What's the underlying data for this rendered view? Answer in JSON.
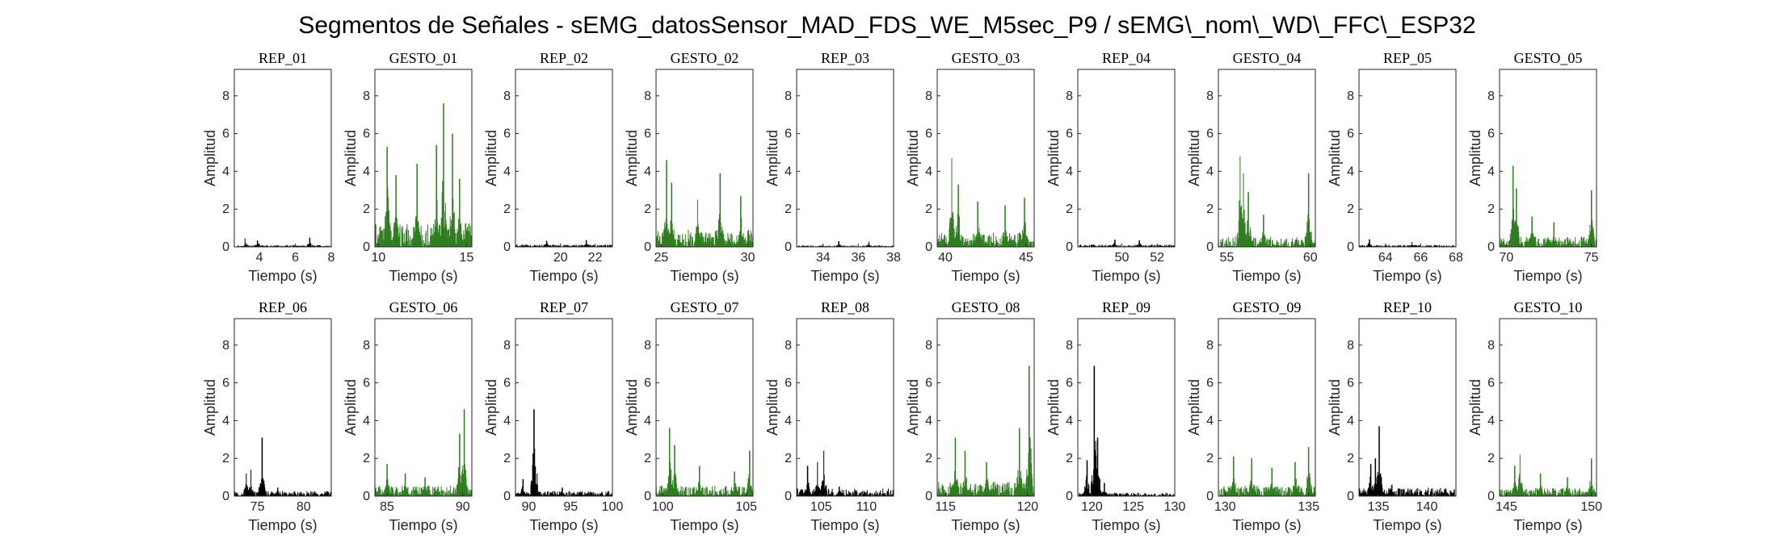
{
  "chart_data": {
    "type": "line",
    "title": "Segmentos de Señales - sEMG_datosSensor_MAD_FDS_WE_M5sec_P9 / sEMG\\_nom\\_WD\\_FFC\\_ESP32",
    "colors": {
      "rep": "#000000",
      "gesto": "#2e7d1e",
      "axes": "#262626"
    },
    "panels": [
      {
        "title": "REP_01",
        "kind": "rep",
        "xlim": [
          2.6,
          8
        ],
        "xticks": [
          4,
          6,
          8
        ],
        "ylim": [
          0,
          9.4
        ],
        "yticks": [
          0,
          2,
          4,
          6,
          8
        ],
        "xlabel": "Tiempo (s)",
        "ylabel": "Amplitud",
        "series": {
          "noise": 0.09,
          "spikes": [
            [
              3.2,
              0.45
            ],
            [
              3.9,
              0.33
            ],
            [
              6.8,
              0.48
            ]
          ]
        }
      },
      {
        "title": "GESTO_01",
        "kind": "gesto",
        "xlim": [
          9.8,
          15.3
        ],
        "xticks": [
          10,
          15
        ],
        "ylim": [
          0,
          9.4
        ],
        "yticks": [
          0,
          2,
          4,
          6,
          8
        ],
        "xlabel": "Tiempo (s)",
        "ylabel": "Amplitud",
        "series": {
          "noise": 1.3,
          "spikes": [
            [
              10.5,
              5.3
            ],
            [
              11.0,
              3.8
            ],
            [
              12.2,
              4.4
            ],
            [
              13.3,
              5.4
            ],
            [
              13.7,
              7.6
            ],
            [
              14.2,
              6.0
            ],
            [
              14.6,
              3.6
            ]
          ]
        }
      },
      {
        "title": "REP_02",
        "kind": "rep",
        "xlim": [
          17.4,
          23
        ],
        "xticks": [
          20,
          22
        ],
        "ylim": [
          0,
          9.4
        ],
        "yticks": [
          0,
          2,
          4,
          6,
          8
        ],
        "xlabel": "Tiempo (s)",
        "ylabel": "Amplitud",
        "series": {
          "noise": 0.12,
          "spikes": [
            [
              19.2,
              0.32
            ],
            [
              21.5,
              0.36
            ]
          ]
        }
      },
      {
        "title": "GESTO_02",
        "kind": "gesto",
        "xlim": [
          24.7,
          30.3
        ],
        "xticks": [
          25,
          30
        ],
        "ylim": [
          0,
          9.4
        ],
        "yticks": [
          0,
          2,
          4,
          6,
          8
        ],
        "xlabel": "Tiempo (s)",
        "ylabel": "Amplitud",
        "series": {
          "noise": 0.9,
          "spikes": [
            [
              25.3,
              4.6
            ],
            [
              25.6,
              3.4
            ],
            [
              27.1,
              2.5
            ],
            [
              28.4,
              3.9
            ],
            [
              29.6,
              2.7
            ]
          ]
        }
      },
      {
        "title": "REP_03",
        "kind": "rep",
        "xlim": [
          32.5,
          38
        ],
        "xticks": [
          34,
          36,
          38
        ],
        "ylim": [
          0,
          9.4
        ],
        "yticks": [
          0,
          2,
          4,
          6,
          8
        ],
        "xlabel": "Tiempo (s)",
        "ylabel": "Amplitud",
        "series": {
          "noise": 0.08,
          "spikes": [
            [
              34.9,
              0.3
            ],
            [
              36.6,
              0.28
            ]
          ]
        }
      },
      {
        "title": "GESTO_03",
        "kind": "gesto",
        "xlim": [
          39.5,
          45.5
        ],
        "xticks": [
          40,
          45
        ],
        "ylim": [
          0,
          9.4
        ],
        "yticks": [
          0,
          2,
          4,
          6,
          8
        ],
        "xlabel": "Tiempo (s)",
        "ylabel": "Amplitud",
        "series": {
          "noise": 0.75,
          "spikes": [
            [
              40.4,
              4.7
            ],
            [
              40.8,
              3.3
            ],
            [
              42.0,
              2.4
            ],
            [
              43.7,
              2.2
            ],
            [
              44.9,
              2.6
            ]
          ]
        }
      },
      {
        "title": "REP_04",
        "kind": "rep",
        "xlim": [
          47.5,
          53
        ],
        "xticks": [
          50,
          52
        ],
        "ylim": [
          0,
          9.4
        ],
        "yticks": [
          0,
          2,
          4,
          6,
          8
        ],
        "xlabel": "Tiempo (s)",
        "ylabel": "Amplitud",
        "series": {
          "noise": 0.12,
          "spikes": [
            [
              49.6,
              0.38
            ],
            [
              51.0,
              0.34
            ]
          ]
        }
      },
      {
        "title": "GESTO_04",
        "kind": "gesto",
        "xlim": [
          54.5,
          60.3
        ],
        "xticks": [
          55,
          60
        ],
        "ylim": [
          0,
          9.4
        ],
        "yticks": [
          0,
          2,
          4,
          6,
          8
        ],
        "xlabel": "Tiempo (s)",
        "ylabel": "Amplitud",
        "series": {
          "noise": 0.55,
          "spikes": [
            [
              55.8,
              4.8
            ],
            [
              56.0,
              3.9
            ],
            [
              56.3,
              2.9
            ],
            [
              57.2,
              1.7
            ],
            [
              59.9,
              3.9
            ]
          ]
        }
      },
      {
        "title": "REP_05",
        "kind": "rep",
        "xlim": [
          62.5,
          68
        ],
        "xticks": [
          64,
          66,
          68
        ],
        "ylim": [
          0,
          9.4
        ],
        "yticks": [
          0,
          2,
          4,
          6,
          8
        ],
        "xlabel": "Tiempo (s)",
        "ylabel": "Amplitud",
        "series": {
          "noise": 0.1,
          "spikes": [
            [
              63.1,
              0.4
            ],
            [
              65.5,
              0.25
            ]
          ]
        }
      },
      {
        "title": "GESTO_05",
        "kind": "gesto",
        "xlim": [
          69.6,
          75.3
        ],
        "xticks": [
          70,
          75
        ],
        "ylim": [
          0,
          9.4
        ],
        "yticks": [
          0,
          2,
          4,
          6,
          8
        ],
        "xlabel": "Tiempo (s)",
        "ylabel": "Amplitud",
        "series": {
          "noise": 0.55,
          "spikes": [
            [
              70.4,
              4.3
            ],
            [
              70.6,
              3.1
            ],
            [
              71.5,
              1.6
            ],
            [
              72.8,
              1.3
            ],
            [
              75.0,
              3.0
            ]
          ]
        }
      },
      {
        "title": "REP_06",
        "kind": "rep",
        "xlim": [
          72.5,
          83
        ],
        "xticks": [
          75,
          80
        ],
        "ylim": [
          0,
          9.4
        ],
        "yticks": [
          0,
          2,
          4,
          6,
          8
        ],
        "xlabel": "Tiempo (s)",
        "ylabel": "Amplitud",
        "series": {
          "noise": 0.28,
          "spikes": [
            [
              73.8,
              1.2
            ],
            [
              74.3,
              1.4
            ],
            [
              75.5,
              3.1
            ],
            [
              77.2,
              0.45
            ]
          ]
        }
      },
      {
        "title": "GESTO_06",
        "kind": "gesto",
        "xlim": [
          84.2,
          90.6
        ],
        "xticks": [
          85,
          90
        ],
        "ylim": [
          0,
          9.4
        ],
        "yticks": [
          0,
          2,
          4,
          6,
          8
        ],
        "xlabel": "Tiempo (s)",
        "ylabel": "Amplitud",
        "series": {
          "noise": 0.55,
          "spikes": [
            [
              85.0,
              1.7
            ],
            [
              86.2,
              1.2
            ],
            [
              87.5,
              1.0
            ],
            [
              89.8,
              3.3
            ],
            [
              90.1,
              4.6
            ]
          ]
        }
      },
      {
        "title": "REP_07",
        "kind": "rep",
        "xlim": [
          88.4,
          100
        ],
        "xticks": [
          90,
          95,
          100
        ],
        "ylim": [
          0,
          9.4
        ],
        "yticks": [
          0,
          2,
          4,
          6,
          8
        ],
        "xlabel": "Tiempo (s)",
        "ylabel": "Amplitud",
        "series": {
          "noise": 0.28,
          "spikes": [
            [
              89.3,
              0.9
            ],
            [
              90.6,
              4.6
            ],
            [
              91.0,
              1.2
            ],
            [
              94.0,
              0.45
            ]
          ]
        }
      },
      {
        "title": "GESTO_07",
        "kind": "gesto",
        "xlim": [
          99.6,
          105.4
        ],
        "xticks": [
          100,
          105
        ],
        "ylim": [
          0,
          9.4
        ],
        "yticks": [
          0,
          2,
          4,
          6,
          8
        ],
        "xlabel": "Tiempo (s)",
        "ylabel": "Amplitud",
        "series": {
          "noise": 0.55,
          "spikes": [
            [
              100.4,
              3.6
            ],
            [
              100.7,
              2.7
            ],
            [
              102.2,
              1.6
            ],
            [
              104.3,
              1.3
            ],
            [
              105.2,
              2.4
            ]
          ]
        }
      },
      {
        "title": "REP_08",
        "kind": "rep",
        "xlim": [
          102.3,
          113
        ],
        "xticks": [
          105,
          110
        ],
        "ylim": [
          0,
          9.4
        ],
        "yticks": [
          0,
          2,
          4,
          6,
          8
        ],
        "xlabel": "Tiempo (s)",
        "ylabel": "Amplitud",
        "series": {
          "noise": 0.4,
          "spikes": [
            [
              103.5,
              1.6
            ],
            [
              104.6,
              1.8
            ],
            [
              105.3,
              2.4
            ],
            [
              107.0,
              0.5
            ]
          ]
        }
      },
      {
        "title": "GESTO_08",
        "kind": "gesto",
        "xlim": [
          114.5,
          120.4
        ],
        "xticks": [
          115,
          120
        ],
        "ylim": [
          0,
          9.4
        ],
        "yticks": [
          0,
          2,
          4,
          6,
          8
        ],
        "xlabel": "Tiempo (s)",
        "ylabel": "Amplitud",
        "series": {
          "noise": 0.75,
          "spikes": [
            [
              115.6,
              3.1
            ],
            [
              116.2,
              2.4
            ],
            [
              117.5,
              1.8
            ],
            [
              119.5,
              3.6
            ],
            [
              120.1,
              6.9
            ]
          ]
        }
      },
      {
        "title": "REP_09",
        "kind": "rep",
        "xlim": [
          118.3,
          130
        ],
        "xticks": [
          120,
          125,
          130
        ],
        "ylim": [
          0,
          9.4
        ],
        "yticks": [
          0,
          2,
          4,
          6,
          8
        ],
        "xlabel": "Tiempo (s)",
        "ylabel": "Amplitud",
        "series": {
          "noise": 0.18,
          "spikes": [
            [
              119.4,
              1.9
            ],
            [
              120.3,
              6.9
            ],
            [
              120.7,
              3.1
            ],
            [
              121.5,
              0.7
            ]
          ]
        }
      },
      {
        "title": "GESTO_09",
        "kind": "gesto",
        "xlim": [
          129.6,
          135.4
        ],
        "xticks": [
          130,
          135
        ],
        "ylim": [
          0,
          9.4
        ],
        "yticks": [
          0,
          2,
          4,
          6,
          8
        ],
        "xlabel": "Tiempo (s)",
        "ylabel": "Amplitud",
        "series": {
          "noise": 0.6,
          "spikes": [
            [
              130.5,
              2.1
            ],
            [
              131.6,
              2.0
            ],
            [
              132.8,
              1.5
            ],
            [
              134.2,
              1.8
            ],
            [
              135.0,
              2.6
            ]
          ]
        }
      },
      {
        "title": "REP_10",
        "kind": "rep",
        "xlim": [
          133,
          143
        ],
        "xticks": [
          135,
          140
        ],
        "ylim": [
          0,
          9.4
        ],
        "yticks": [
          0,
          2,
          4,
          6,
          8
        ],
        "xlabel": "Tiempo (s)",
        "ylabel": "Amplitud",
        "series": {
          "noise": 0.45,
          "spikes": [
            [
              134.2,
              1.7
            ],
            [
              134.7,
              2.0
            ],
            [
              135.1,
              3.7
            ],
            [
              136.4,
              0.6
            ]
          ]
        }
      },
      {
        "title": "GESTO_10",
        "kind": "gesto",
        "xlim": [
          144.6,
          150.3
        ],
        "xticks": [
          145,
          150
        ],
        "ylim": [
          0,
          9.4
        ],
        "yticks": [
          0,
          2,
          4,
          6,
          8
        ],
        "xlabel": "Tiempo (s)",
        "ylabel": "Amplitud",
        "series": {
          "noise": 0.45,
          "spikes": [
            [
              145.5,
              1.6
            ],
            [
              145.8,
              2.2
            ],
            [
              147.0,
              1.2
            ],
            [
              148.6,
              1.0
            ],
            [
              150.0,
              2.0
            ]
          ]
        }
      }
    ]
  }
}
